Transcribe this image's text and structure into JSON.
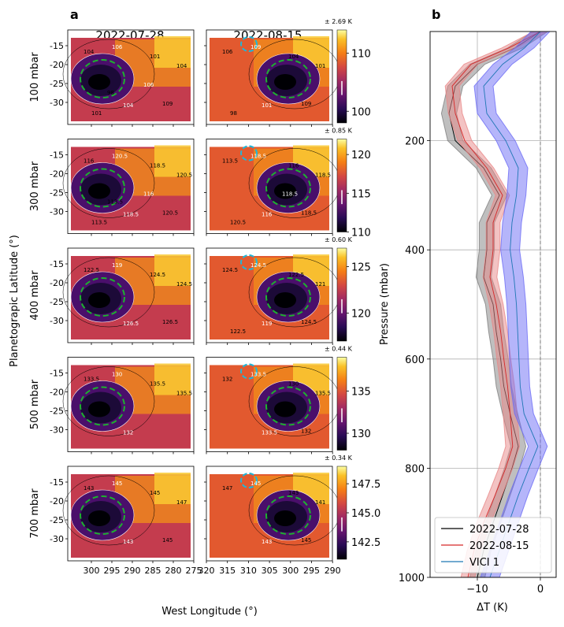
{
  "panel_a": {
    "letter": "a",
    "dates": [
      "2022-07-28",
      "2022-08-15"
    ],
    "xlabel": "West Longitude (°)",
    "ylabel": "Planetograpic Latitude (°)",
    "lat_ticks": [
      "-15",
      "-20",
      "-25",
      "-30"
    ],
    "lon_ticks_left": [
      "300",
      "295",
      "290",
      "285",
      "280",
      "275"
    ],
    "lon_ticks_right": [
      "320",
      "315",
      "310",
      "305",
      "300",
      "295",
      "290"
    ],
    "rows": [
      {
        "level": "100 mbar",
        "uncertainty": "± 2.69 K",
        "cbar_ticks": [
          "110",
          "100"
        ],
        "cbar_range": [
          98,
          114
        ],
        "contours_left": [
          "104",
          "106",
          "101",
          "104",
          "104",
          "109",
          "101",
          "106",
          "98"
        ],
        "contours_right": [
          "106",
          "109",
          "104",
          "101",
          "101",
          "109",
          "98"
        ]
      },
      {
        "level": "300 mbar",
        "uncertainty": "± 0.85 K",
        "cbar_ticks": [
          "120",
          "115",
          "110"
        ],
        "cbar_range": [
          110,
          122
        ],
        "contours_left": [
          "116",
          "120.5",
          "118.5",
          "120.5",
          "118.5",
          "120.5",
          "113.5",
          "116",
          "113.5"
        ],
        "contours_right": [
          "113.5",
          "118.5",
          "116",
          "118.5",
          "116",
          "118.5",
          "120.5",
          "118.5"
        ]
      },
      {
        "level": "400 mbar",
        "uncertainty": "± 0.60 K",
        "cbar_ticks": [
          "125",
          "120"
        ],
        "cbar_range": [
          117,
          127
        ],
        "contours_left": [
          "122.5",
          "119",
          "124.5",
          "124.5",
          "126.5",
          "126.5"
        ],
        "contours_right": [
          "124.5",
          "124.5",
          "122.5",
          "121",
          "119",
          "124.5",
          "122.5"
        ]
      },
      {
        "level": "500 mbar",
        "uncertainty": "± 0.44 K",
        "cbar_ticks": [
          "135",
          "130"
        ],
        "cbar_range": [
          128,
          139
        ],
        "contours_left": [
          "133.5",
          "130",
          "135.5",
          "135.5",
          "132"
        ],
        "contours_right": [
          "132",
          "133.5",
          "130",
          "135.5",
          "133.5",
          "132"
        ]
      },
      {
        "level": "700 mbar",
        "uncertainty": "± 0.34 K",
        "cbar_ticks": [
          "147.5",
          "145.0",
          "142.5"
        ],
        "cbar_range": [
          141,
          149
        ],
        "contours_left": [
          "143",
          "145",
          "145",
          "147",
          "143",
          "145"
        ],
        "contours_right": [
          "147",
          "145",
          "143",
          "141",
          "143",
          "145"
        ]
      }
    ]
  },
  "chart_data": {
    "type": "line",
    "title": "b",
    "xlabel": "ΔT (K)",
    "ylabel": "Pressure (mbar)",
    "xlim": [
      -17.5,
      2.5
    ],
    "ylim": [
      1000,
      0
    ],
    "xticks": [
      -10,
      0
    ],
    "xtick_labels": [
      "−10",
      "0"
    ],
    "yticks": [
      200,
      400,
      600,
      800,
      1000
    ],
    "grid": true,
    "legend_position": "lower-left",
    "series": [
      {
        "name": "2022-07-28",
        "color": "#000000",
        "band_color": "#808080",
        "band_halfwidth": 1.2,
        "pressure": [
          0,
          30,
          60,
          100,
          150,
          200,
          250,
          300,
          350,
          400,
          450,
          500,
          550,
          600,
          650,
          700,
          760,
          800,
          850,
          900,
          950,
          1000
        ],
        "dT": [
          0,
          -4,
          -10,
          -13.5,
          -14.5,
          -13.5,
          -9,
          -6.5,
          -8.5,
          -8.5,
          -9,
          -7.5,
          -7,
          -6.3,
          -5.8,
          -4.8,
          -3.5,
          -4.5,
          -6,
          -7.5,
          -9,
          -10
        ]
      },
      {
        "name": "2022-08-15",
        "color": "#d62728",
        "band_color": "#e88888",
        "band_halfwidth": 1.1,
        "pressure": [
          0,
          30,
          60,
          100,
          150,
          200,
          250,
          300,
          350,
          400,
          450,
          500,
          550,
          600,
          650,
          700,
          760,
          800,
          850,
          900,
          950,
          1000
        ],
        "dT": [
          0,
          -5,
          -11,
          -14,
          -13.5,
          -12,
          -8.5,
          -6,
          -7.5,
          -7.5,
          -8,
          -7,
          -6.3,
          -5.8,
          -5.2,
          -4.8,
          -4.4,
          -5.5,
          -7.2,
          -9,
          -10.5,
          -11.5
        ]
      },
      {
        "name": "VICI 1",
        "color": "#1f77b4",
        "band_color": "#6b6bf5",
        "band_halfwidth": 1.5,
        "pressure": [
          0,
          30,
          60,
          100,
          150,
          200,
          250,
          300,
          350,
          400,
          450,
          500,
          550,
          600,
          650,
          700,
          760,
          800,
          850,
          900,
          950,
          1000
        ],
        "dT": [
          0,
          -2.5,
          -6,
          -9,
          -8.5,
          -5.5,
          -3.5,
          -3.8,
          -4.5,
          -4.8,
          -4.2,
          -3.8,
          -3.6,
          -3.4,
          -3.2,
          -2.6,
          -0.4,
          -1.8,
          -3.5,
          -5,
          -6.5,
          -8
        ]
      }
    ]
  }
}
